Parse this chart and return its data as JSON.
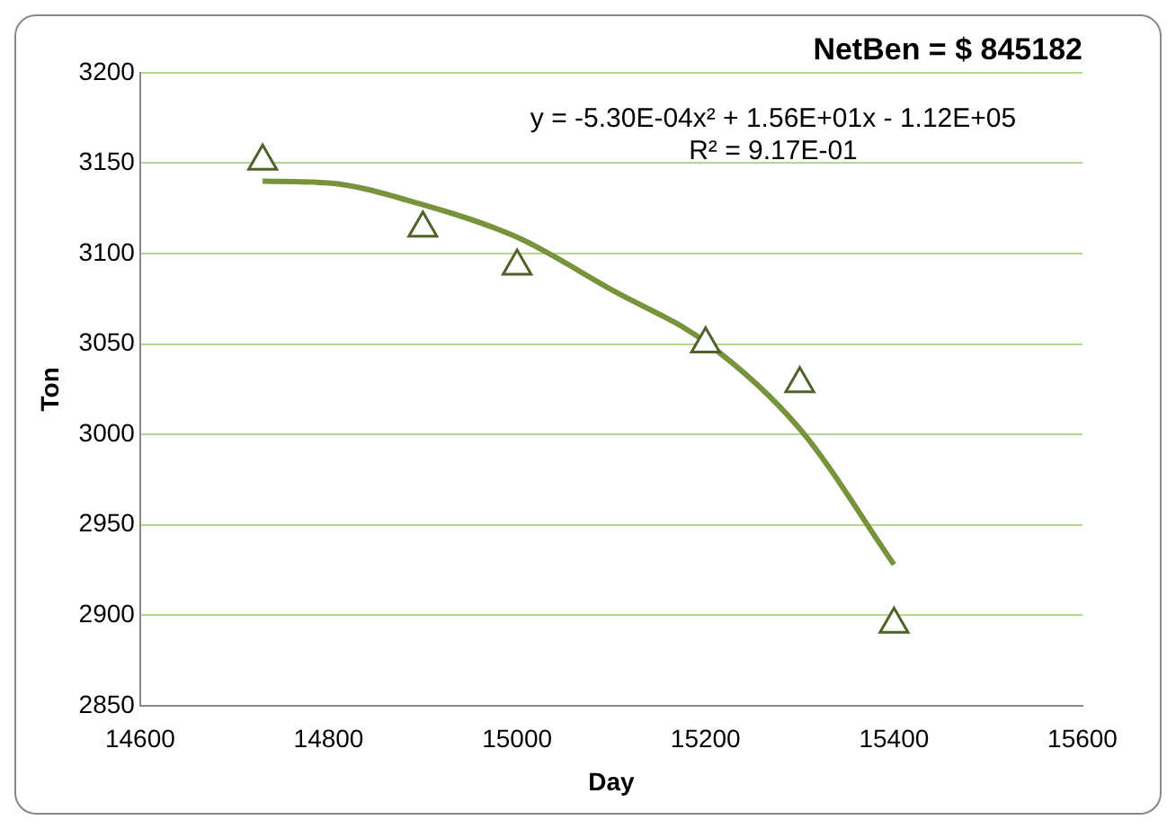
{
  "chart_data": {
    "type": "scatter",
    "title": "NetBen = $ 845182",
    "xlabel": "Day",
    "ylabel": "Ton",
    "annotations": [
      "y = -5.30E-04x² + 1.56E+01x - 1.12E+05",
      "R² = 9.17E-01"
    ],
    "series": [
      {
        "type": "scatter",
        "color": "#4f6228",
        "marker": "triangle",
        "x": [
          14730,
          14900,
          15000,
          15200,
          15300,
          15400
        ],
        "values": [
          3151,
          3114,
          3093,
          3050,
          3028,
          2895
        ]
      },
      {
        "type": "line",
        "color": "#77933c",
        "marker": "none",
        "x": [
          14730,
          14800,
          14900,
          15000,
          15100,
          15200,
          15300,
          15400
        ],
        "values": [
          3140,
          3139,
          3127,
          3109,
          3080,
          3051,
          3003,
          2928
        ]
      }
    ],
    "xlim": [
      14600,
      15600
    ],
    "xticks": [
      14600,
      14800,
      15000,
      15200,
      15400,
      15600
    ],
    "ylim": [
      2850,
      3200
    ],
    "yticks": [
      2850,
      2900,
      2950,
      3000,
      3050,
      3100,
      3150,
      3200
    ],
    "grid": "y",
    "legend": false
  }
}
